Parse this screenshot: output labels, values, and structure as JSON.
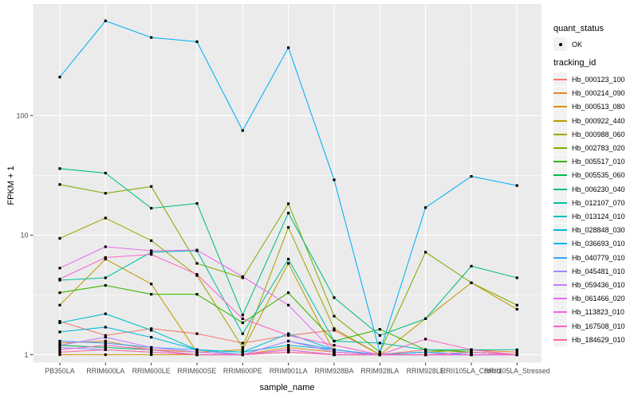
{
  "figure": {
    "background": "#FFFFFF",
    "panel_background": "#EBEBEB",
    "gridline_color": "#FFFFFF",
    "tick_color": "#333333",
    "tick_label_color": "#4D4D4D"
  },
  "legend": {
    "quant_status_title": "quant_status",
    "ok_label": "OK",
    "tracking_id_title": "tracking_id"
  },
  "chart_data": {
    "type": "line",
    "title": "",
    "xlabel": "sample_name",
    "ylabel": "FPKM + 1",
    "y_scale": "log10",
    "grid": true,
    "legend_position": "right",
    "y_ticks": [
      1,
      10,
      100
    ],
    "y_minor_gridlines": [
      3.162,
      31.62,
      316.2
    ],
    "ylim": [
      0.86,
      860
    ],
    "quant_status": "OK",
    "categories": [
      "PB350LA",
      "RRIM600LA",
      "RRIM600LE",
      "RRIM600SE",
      "RRIM600PE",
      "RRIM901LA",
      "RRIM928BA",
      "RRIM928LA",
      "RRIM928LE",
      "RRII105LA_Control",
      "RRII105LA_Stressed"
    ],
    "series": [
      {
        "name": "Hb_000123_100",
        "color": "#F8766D",
        "values": [
          1.9,
          1.45,
          1.65,
          1.5,
          1.25,
          1.45,
          1.6,
          1.0,
          1.1,
          1.05,
          1.0
        ]
      },
      {
        "name": "Hb_000214_090",
        "color": "#E88526",
        "values": [
          1.25,
          1.3,
          1.1,
          1.05,
          1.0,
          1.15,
          1.05,
          1.0,
          1.05,
          1.1,
          1.05
        ]
      },
      {
        "name": "Hb_000513_080",
        "color": "#D89000",
        "values": [
          1.0,
          1.0,
          1.0,
          1.0,
          1.0,
          1.05,
          1.0,
          1.0,
          1.0,
          1.0,
          1.0
        ]
      },
      {
        "name": "Hb_000922_440",
        "color": "#C09B00",
        "values": [
          2.6,
          6.3,
          3.9,
          1.05,
          1.1,
          5.8,
          1.05,
          1.0,
          2.0,
          4.0,
          2.4
        ]
      },
      {
        "name": "Hb_000988_060",
        "color": "#A3A500",
        "values": [
          9.4,
          13.9,
          9.0,
          4.6,
          1.15,
          11.6,
          1.65,
          1.0,
          1.05,
          1.1,
          1.0
        ]
      },
      {
        "name": "Hb_002783_020",
        "color": "#7CAE00",
        "values": [
          26.5,
          22.4,
          25.5,
          5.8,
          4.4,
          18.3,
          2.1,
          1.05,
          7.2,
          4.0,
          2.6
        ]
      },
      {
        "name": "Hb_005517_010",
        "color": "#39B600",
        "values": [
          3.3,
          3.8,
          3.2,
          3.2,
          1.85,
          3.3,
          1.3,
          1.63,
          1.1,
          1.05,
          1.0
        ]
      },
      {
        "name": "Hb_005535_060",
        "color": "#00BB4E",
        "values": [
          1.2,
          1.15,
          1.1,
          1.0,
          1.0,
          1.1,
          1.0,
          1.0,
          1.0,
          1.0,
          1.0
        ]
      },
      {
        "name": "Hb_006230_040",
        "color": "#00BF7D",
        "values": [
          36,
          33,
          16.8,
          18.4,
          2.15,
          15.3,
          3.0,
          1.45,
          2.0,
          5.5,
          4.4
        ]
      },
      {
        "name": "Hb_012107_070",
        "color": "#00C1A3",
        "values": [
          4.2,
          4.4,
          7.2,
          7.4,
          1.5,
          6.3,
          1.3,
          1.25,
          1.1,
          1.1,
          1.1
        ]
      },
      {
        "name": "Hb_013124_010",
        "color": "#00BFC4",
        "values": [
          1.85,
          2.2,
          1.6,
          1.1,
          1.05,
          1.2,
          1.1,
          1.0,
          1.0,
          1.05,
          1.0
        ]
      },
      {
        "name": "Hb_028848_030",
        "color": "#00BAE0",
        "values": [
          1.55,
          1.7,
          1.4,
          1.1,
          1.05,
          1.5,
          1.1,
          1.0,
          1.05,
          1.0,
          1.0
        ]
      },
      {
        "name": "Hb_036693_010",
        "color": "#00B0F6",
        "values": [
          210,
          620,
          450,
          415,
          75,
          370,
          29,
          1.05,
          17,
          31,
          26
        ]
      },
      {
        "name": "Hb_040779_010",
        "color": "#35A2FF",
        "values": [
          1.3,
          1.25,
          1.15,
          1.1,
          1.0,
          1.3,
          1.1,
          1.0,
          1.05,
          1.0,
          1.0
        ]
      },
      {
        "name": "Hb_045481_010",
        "color": "#9590FF",
        "values": [
          1.15,
          1.1,
          1.05,
          1.0,
          1.0,
          1.1,
          1.0,
          1.0,
          1.0,
          1.0,
          1.0
        ]
      },
      {
        "name": "Hb_059436_010",
        "color": "#C77CFF",
        "values": [
          1.2,
          1.4,
          1.15,
          1.05,
          1.0,
          1.3,
          1.05,
          1.0,
          1.0,
          1.0,
          1.0
        ]
      },
      {
        "name": "Hb_061466_020",
        "color": "#E76BF3",
        "values": [
          5.3,
          8.0,
          7.4,
          7.5,
          4.5,
          2.6,
          1.05,
          1.0,
          1.0,
          1.0,
          1.0
        ]
      },
      {
        "name": "Hb_113823_010",
        "color": "#FA62DB",
        "values": [
          1.1,
          1.2,
          1.1,
          1.0,
          1.0,
          1.1,
          1.0,
          1.0,
          1.0,
          1.0,
          1.0
        ]
      },
      {
        "name": "Hb_167508_010",
        "color": "#FF61C9",
        "values": [
          4.3,
          6.5,
          6.9,
          4.7,
          2.0,
          1.45,
          1.2,
          1.0,
          1.35,
          1.1,
          1.0
        ]
      },
      {
        "name": "Hb_184629_010",
        "color": "#FF67A4",
        "values": [
          1.05,
          1.1,
          1.05,
          1.0,
          1.0,
          1.05,
          1.0,
          1.0,
          1.0,
          1.05,
          1.0
        ]
      }
    ]
  }
}
